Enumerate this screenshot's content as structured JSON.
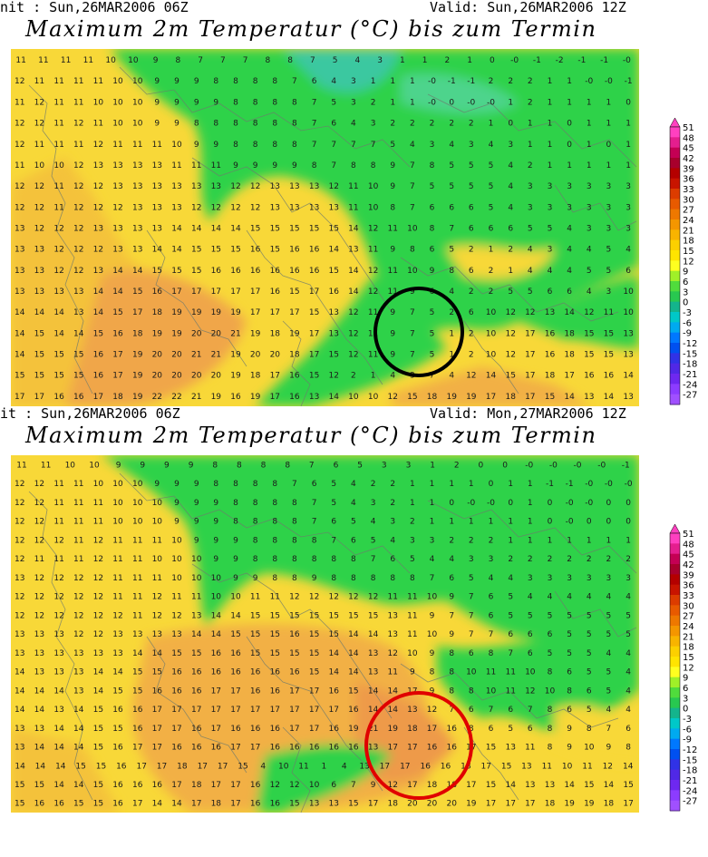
{
  "panels": [
    {
      "init_label": "nit : Sun,26MAR2006 06Z",
      "valid_label": "Valid: Sun,26MAR2006 12Z",
      "title": "Maximum 2m Temperatur (°C) bis zum Termin",
      "highlight_color": "#000000",
      "values": [
        "11 11 11 11 10 10 9 8 7 7 7 8 8 7 5 4 3 1 1 2 1 0 -0 -1 -2 -1 -1 -0",
        "12 11 11 11 11 10 10 9 9 9 8 8 8 8 7 6 4 3 1 1 1 -0 -1 -1 2 2 2 1 1 -0 -0 -1",
        "11 12 11 11 10 10 10 9 9 9 9 8 8 8 8 7 5 3 2 1 1 -0 0 -0 -0 1 2 1 1 1 1 0",
        "12 12 11 12 11 10 10 9 9 8 8 8 8 8 8 7 6 4 3 2 2 2 2 2 1 0 1 1 0 1 1 1",
        "12 11 11 11 12 11 11 11 10 9 9 8 8 8 8 7 7 7 7 5 4 3 4 3 4 3 1 1 0 1 0 1",
        "11 10 10 12 13 13 13 13 11 11 11 9 9 9 9 8 7 8 8 9 7 8 5 5 5 4 2 1 1 1 1 1",
        "12 12 11 12 12 13 13 13 13 13 13 12 12 13 13 13 12 11 10 9 7 5 5 5 5 4 3 3 3 3 3 3",
        "12 12 11 12 12 12 13 13 13 12 12 12 12 13 13 13 13 11 10 8 7 6 6 6 5 4 3 3 3 3 3 3",
        "13 12 12 12 13 13 13 13 14 14 14 14 15 15 15 15 15 14 12 11 10 8 7 6 6 6 5 5 4 3 3 3",
        "13 13 12 12 12 13 13 14 14 15 15 15 16 15 16 16 14 13 11 9 8 6 5 2 1 2 4 3 4 4 5 4",
        "13 13 12 12 13 14 14 15 15 15 16 16 16 16 16 16 15 14 12 11 10 9 8 6 2 1 4 4 4 5 5 6",
        "13 13 13 13 14 14 15 16 17 17 17 17 17 16 15 17 16 14 12 11 9 6 4 2 2 5 5 6 6 4 3 10",
        "14 14 14 13 14 15 17 18 19 19 19 19 17 17 17 15 13 12 11 9 7 5 2 6 10 12 12 13 14 12 11 10",
        "14 15 14 14 15 16 18 19 19 20 20 21 19 18 19 17 13 12 11 9 7 5 1 2 10 12 17 16 18 15 15 13",
        "14 15 15 15 16 17 19 20 20 21 21 19 20 20 18 17 15 12 11 9 7 5 1 2 10 12 17 16 18 15 15 13",
        "15 15 15 15 16 17 19 20 20 20 20 19 18 17 16 15 12 2 1 4 3 7 4 12 14 15 17 18 17 16 16 14",
        "17 17 16 16 17 18 19 22 22 21 19 16 19 17 16 13 14 10 10 12 15 18 19 19 17 18 17 15 14 13 14 13"
      ]
    },
    {
      "init_label": "it : Sun,26MAR2006 06Z",
      "valid_label": "Valid: Mon,27MAR2006 12Z",
      "title": "Maximum 2m Temperatur (°C) bis zum Termin",
      "highlight_color": "#e00000",
      "values": [
        "11 11 10 10 9 9 9 9 8 8 8 8 7 6 5 3 3 1 2 0 0 -0 -0 -0 -0 -1",
        "12 12 11 11 10 10 10 9 9 9 8 8 8 8 7 6 5 4 2 2 1 1 1 1 0 1 1 -1 -1 -0 -0 -0",
        "12 12 11 11 11 10 10 10 9 9 9 8 8 8 8 7 5 4 3 2 1 1 0 -0 -0 0 1 0 -0 -0 0 0",
        "12 12 11 11 11 10 10 10 9 9 9 8 8 8 8 7 6 5 4 3 2 1 1 1 1 1 1 0 -0 0 0 0",
        "12 12 12 11 12 11 11 11 10 9 9 9 8 8 8 8 7 6 5 4 3 3 2 2 2 1 1 1 1 1 1 1",
        "12 11 11 11 12 11 11 10 10 10 9 9 8 8 8 8 8 8 7 6 5 4 4 3 3 2 2 2 2 2 2 2",
        "13 12 12 12 12 11 11 11 10 10 10 9 9 8 8 9 8 8 8 8 8 7 6 5 4 4 3 3 3 3 3 3",
        "12 12 12 12 12 11 11 12 11 11 10 10 11 11 12 12 12 12 12 11 11 10 9 7 6 5 4 4 4 4 4 4",
        "12 12 12 12 12 12 11 12 12 13 14 14 15 15 15 15 15 15 15 13 11 9 7 7 6 5 5 5 5 5 5 5",
        "13 13 13 12 12 13 13 13 13 14 14 15 15 15 16 15 15 14 14 13 11 10 9 7 7 6 6 6 5 5 5 5",
        "13 13 13 13 13 13 14 14 15 15 16 16 15 15 15 15 14 14 13 12 10 9 8 6 8 7 6 5 5 5 4 4",
        "14 13 13 13 14 14 15 15 16 16 16 16 16 16 16 15 14 14 13 11 9 8 8 10 11 11 10 8 6 5 5 4",
        "14 14 14 13 14 15 15 16 16 16 17 17 16 16 17 17 16 15 14 14 17 9 8 8 10 11 12 10 8 6 5 4",
        "14 14 13 14 15 16 16 17 17 17 17 17 17 17 17 17 17 16 14 14 13 12 7 6 7 6 7 8 6 5 4 4",
        "13 13 14 14 15 15 16 17 17 16 17 16 16 16 17 17 16 19 21 19 18 17 16 8 6 5 6 8 9 8 7 6",
        "13 14 14 14 15 16 17 17 16 16 16 17 17 16 16 16 16 16 13 17 17 16 16 17 15 13 11 8 9 10 9 8",
        "14 14 14 15 15 16 17 17 18 17 17 15 4 10 11 1 4 13 17 17 16 16 18 17 15 13 11 10 11 12 14",
        "15 15 14 14 15 16 16 16 17 18 17 17 16 12 12 10 6 7 9 12 17 18 18 17 15 14 13 13 14 15 14 15",
        "15 16 16 15 15 16 17 14 14 17 18 17 16 16 15 13 13 15 17 18 20 20 20 19 17 17 17 18 19 19 18 17"
      ]
    }
  ],
  "legend": {
    "labels": [
      "51",
      "48",
      "45",
      "42",
      "39",
      "36",
      "33",
      "30",
      "27",
      "24",
      "21",
      "18",
      "15",
      "12",
      "9",
      "6",
      "3",
      "0",
      "-3",
      "-6",
      "-9",
      "-12",
      "-15",
      "-18",
      "-21",
      "-24",
      "-27"
    ],
    "colors": [
      "#ff40c0",
      "#e41e8e",
      "#c40054",
      "#a8002c",
      "#b40000",
      "#c81400",
      "#dc3c00",
      "#e85a00",
      "#ee7800",
      "#f49600",
      "#f8b400",
      "#fcd000",
      "#ffe400",
      "#ffff20",
      "#a0f028",
      "#50dc3c",
      "#28c850",
      "#14b48c",
      "#00c8c8",
      "#00aaf0",
      "#0078ff",
      "#0050f0",
      "#3032e6",
      "#5028e6",
      "#6e28f0",
      "#8c3cff",
      "#a050ff"
    ]
  }
}
